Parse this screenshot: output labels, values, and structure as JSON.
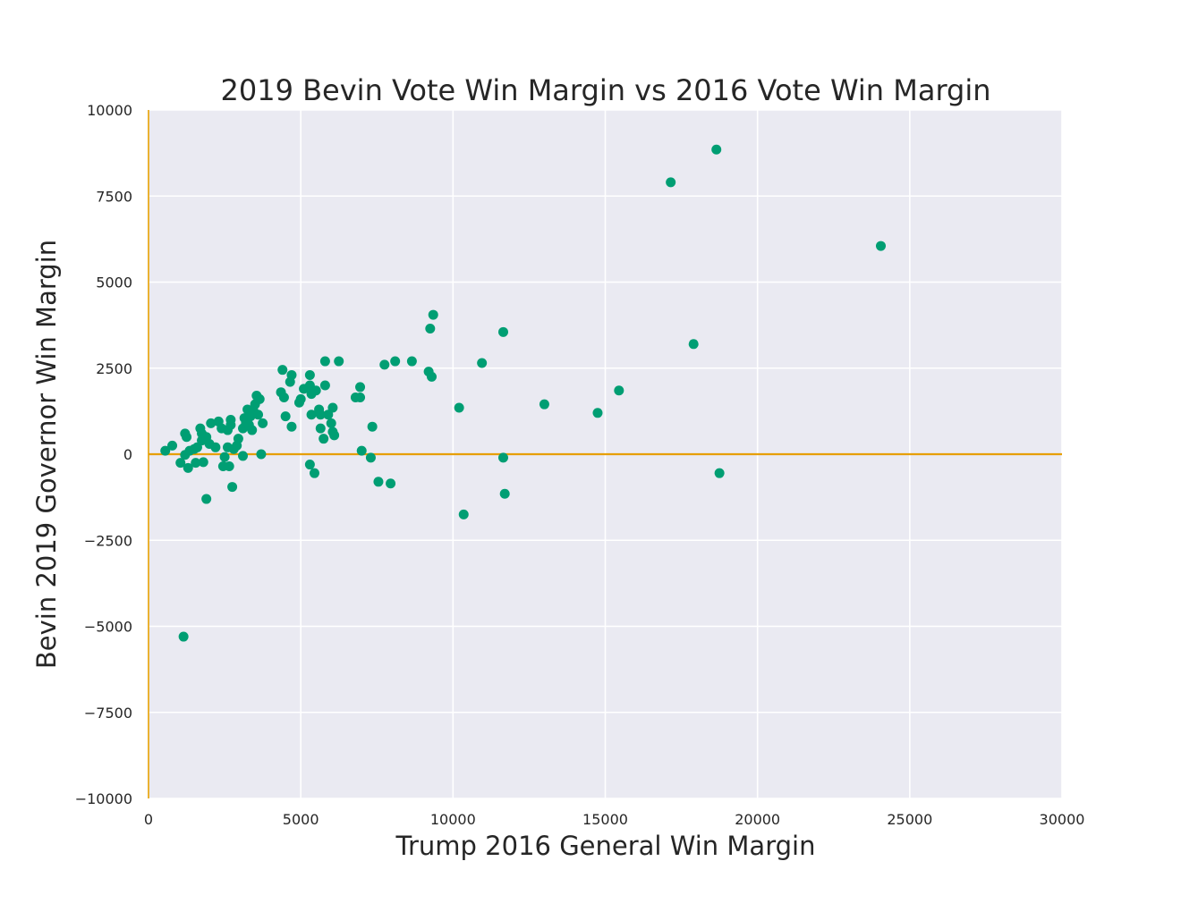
{
  "chart_data": {
    "type": "scatter",
    "title": "2019 Bevin Vote Win Margin vs 2016 Vote Win Margin",
    "xlabel": "Trump 2016 General Win Margin",
    "ylabel": "Bevin 2019 Governor Win Margin",
    "xlim": [
      0,
      30000
    ],
    "ylim": [
      -10000,
      10000
    ],
    "xticks": [
      0,
      5000,
      10000,
      15000,
      20000,
      25000,
      30000
    ],
    "xtick_labels": [
      "0",
      "5000",
      "10000",
      "15000",
      "20000",
      "25000",
      "30000"
    ],
    "yticks": [
      -10000,
      -7500,
      -5000,
      -2500,
      0,
      2500,
      5000,
      7500,
      10000
    ],
    "ytick_labels": [
      "−10000",
      "−7500",
      "−5000",
      "−2500",
      "0",
      "2500",
      "5000",
      "7500",
      "10000"
    ],
    "grid": true,
    "reference_lines": [
      {
        "orientation": "horizontal",
        "value": 0,
        "color": "#e69f00"
      },
      {
        "orientation": "vertical",
        "value": 0,
        "color": "#e69f00"
      }
    ],
    "colors": {
      "points": "#009e73",
      "reference": "#e69f00",
      "background": "#eaeaf2"
    },
    "points": [
      {
        "x": 550,
        "y": 100
      },
      {
        "x": 780,
        "y": 250
      },
      {
        "x": 1050,
        "y": -250
      },
      {
        "x": 1150,
        "y": -5300
      },
      {
        "x": 1200,
        "y": -20
      },
      {
        "x": 1200,
        "y": 600
      },
      {
        "x": 1250,
        "y": 500
      },
      {
        "x": 1300,
        "y": -400
      },
      {
        "x": 1350,
        "y": 100
      },
      {
        "x": 1500,
        "y": 150
      },
      {
        "x": 1550,
        "y": -250
      },
      {
        "x": 1600,
        "y": 200
      },
      {
        "x": 1700,
        "y": 750
      },
      {
        "x": 1750,
        "y": 600
      },
      {
        "x": 1750,
        "y": 400
      },
      {
        "x": 1800,
        "y": -230
      },
      {
        "x": 1900,
        "y": 500
      },
      {
        "x": 1900,
        "y": -1300
      },
      {
        "x": 2000,
        "y": 300
      },
      {
        "x": 2050,
        "y": 900
      },
      {
        "x": 2200,
        "y": 200
      },
      {
        "x": 2300,
        "y": 950
      },
      {
        "x": 2400,
        "y": 750
      },
      {
        "x": 2450,
        "y": -350
      },
      {
        "x": 2500,
        "y": -80
      },
      {
        "x": 2600,
        "y": 700
      },
      {
        "x": 2600,
        "y": 200
      },
      {
        "x": 2650,
        "y": -350
      },
      {
        "x": 2700,
        "y": 1000
      },
      {
        "x": 2700,
        "y": 850
      },
      {
        "x": 2750,
        "y": -950
      },
      {
        "x": 2800,
        "y": 150
      },
      {
        "x": 2900,
        "y": 250
      },
      {
        "x": 2950,
        "y": 450
      },
      {
        "x": 3100,
        "y": 750
      },
      {
        "x": 3100,
        "y": -50
      },
      {
        "x": 3150,
        "y": 1050
      },
      {
        "x": 3200,
        "y": 900
      },
      {
        "x": 3250,
        "y": 1300
      },
      {
        "x": 3300,
        "y": 850
      },
      {
        "x": 3350,
        "y": 1100
      },
      {
        "x": 3400,
        "y": 700
      },
      {
        "x": 3450,
        "y": 1250
      },
      {
        "x": 3500,
        "y": 1450
      },
      {
        "x": 3550,
        "y": 1700
      },
      {
        "x": 3600,
        "y": 1150
      },
      {
        "x": 3650,
        "y": 1600
      },
      {
        "x": 3700,
        "y": 0
      },
      {
        "x": 3750,
        "y": 900
      },
      {
        "x": 4350,
        "y": 1800
      },
      {
        "x": 4400,
        "y": 2450
      },
      {
        "x": 4450,
        "y": 1650
      },
      {
        "x": 4500,
        "y": 1100
      },
      {
        "x": 4650,
        "y": 2100
      },
      {
        "x": 4700,
        "y": 2300
      },
      {
        "x": 4700,
        "y": 800
      },
      {
        "x": 4950,
        "y": 1500
      },
      {
        "x": 5000,
        "y": 1600
      },
      {
        "x": 5100,
        "y": 1900
      },
      {
        "x": 5300,
        "y": 2300
      },
      {
        "x": 5300,
        "y": 2000
      },
      {
        "x": 5350,
        "y": 1750
      },
      {
        "x": 5350,
        "y": 1150
      },
      {
        "x": 5300,
        "y": -300
      },
      {
        "x": 5450,
        "y": -550
      },
      {
        "x": 5500,
        "y": 1850
      },
      {
        "x": 5600,
        "y": 1300
      },
      {
        "x": 5650,
        "y": 1150
      },
      {
        "x": 5650,
        "y": 750
      },
      {
        "x": 5750,
        "y": 450
      },
      {
        "x": 5800,
        "y": 2000
      },
      {
        "x": 5800,
        "y": 2700
      },
      {
        "x": 5900,
        "y": 1150
      },
      {
        "x": 6000,
        "y": 900
      },
      {
        "x": 6050,
        "y": 1350
      },
      {
        "x": 6050,
        "y": 650
      },
      {
        "x": 6100,
        "y": 550
      },
      {
        "x": 6250,
        "y": 2700
      },
      {
        "x": 6800,
        "y": 1650
      },
      {
        "x": 6950,
        "y": 1950
      },
      {
        "x": 6950,
        "y": 1650
      },
      {
        "x": 7000,
        "y": 100
      },
      {
        "x": 7300,
        "y": -100
      },
      {
        "x": 7350,
        "y": 800
      },
      {
        "x": 7550,
        "y": -800
      },
      {
        "x": 7750,
        "y": 2600
      },
      {
        "x": 7950,
        "y": -850
      },
      {
        "x": 8100,
        "y": 2700
      },
      {
        "x": 8650,
        "y": 2700
      },
      {
        "x": 9200,
        "y": 2400
      },
      {
        "x": 9250,
        "y": 3650
      },
      {
        "x": 9300,
        "y": 2250
      },
      {
        "x": 9350,
        "y": 4050
      },
      {
        "x": 10200,
        "y": 1350
      },
      {
        "x": 10350,
        "y": -1750
      },
      {
        "x": 10950,
        "y": 2650
      },
      {
        "x": 11650,
        "y": 3550
      },
      {
        "x": 11650,
        "y": -100
      },
      {
        "x": 11700,
        "y": -1150
      },
      {
        "x": 13000,
        "y": 1450
      },
      {
        "x": 14750,
        "y": 1200
      },
      {
        "x": 15450,
        "y": 1850
      },
      {
        "x": 17150,
        "y": 7900
      },
      {
        "x": 17900,
        "y": 3200
      },
      {
        "x": 18650,
        "y": 8850
      },
      {
        "x": 18750,
        "y": -550
      },
      {
        "x": 24050,
        "y": 6050
      }
    ]
  }
}
